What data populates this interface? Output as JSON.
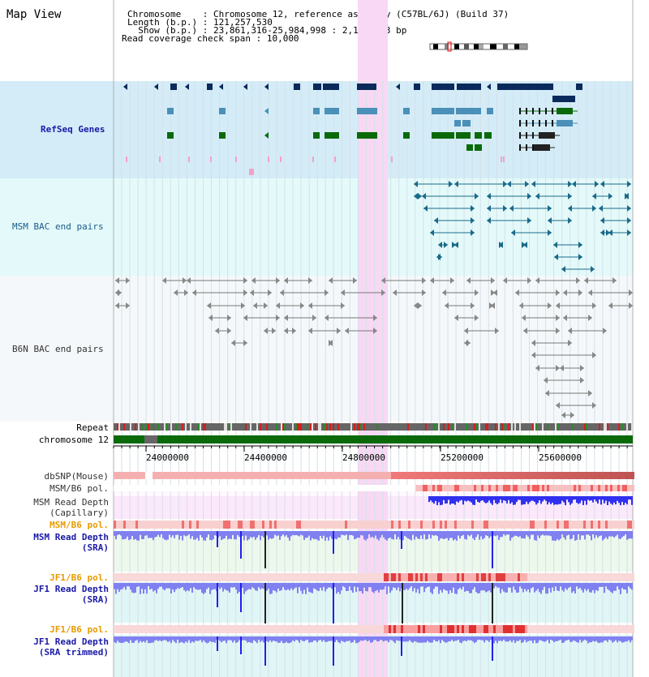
{
  "page": {
    "title": "Map View"
  },
  "info": {
    "chromosome_key": "Chromosome   ",
    "chromosome_val": ": Chromosome 12, reference assembly (C57BL/6J) (Build 37)",
    "length_key": "Length (b.p.)",
    "length_val": ": 121,257,530",
    "show_key": "  Show (b.p.)",
    "show_val": ": 23,861,316-25,984,998 : 2,123,683 bp",
    "coverage_key": "Read coverage check span",
    "coverage_val": ": 10,000"
  },
  "tracks": {
    "refseq": "RefSeq Genes",
    "msm_bac": "MSM BAC end pairs",
    "b6n_bac": "B6N BAC end pairs",
    "repeat": "Repeat",
    "chromosome": "chromosome 12",
    "dbsnp": "dbSNP(Mouse)",
    "msm_b6_pol_1": "MSM/B6 pol.",
    "msm_depth_cap_1": "MSM Read Depth",
    "msm_depth_cap_2": "(Capillary)",
    "msm_b6_pol_2": "MSM/B6 pol.",
    "msm_depth_sra_1": "MSM Read Depth",
    "msm_depth_sra_2": "(SRA)",
    "jf1_b6_pol_1": "JF1/B6 pol.",
    "jf1_depth_sra_1": "JF1 Read Depth",
    "jf1_depth_sra_2": "(SRA)",
    "jf1_b6_pol_2": "JF1/B6 pol.",
    "jf1_depth_trim_1": "JF1 Read Depth",
    "jf1_depth_trim_2": "(SRA trimmed)"
  },
  "axis": {
    "ticks": [
      "24000000",
      "24400000",
      "24800000",
      "25200000",
      "25600000"
    ]
  },
  "colors": {
    "refseq_bg": "#d4ecf7",
    "bac_bg": "#e4fafa",
    "b6n_bg": "#f5f8fa",
    "highlight": "#f8d8f4",
    "dark_gene": "#0a2a5c",
    "mid_gene": "#4a90b8",
    "green_gene": "#0a6a0a",
    "chromosome": "#0a6a0a",
    "depth_blue": "#2020f0",
    "depth_light": "#8080f0"
  }
}
